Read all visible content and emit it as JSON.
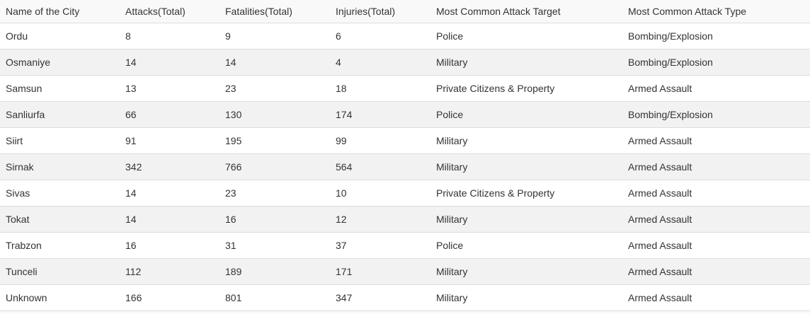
{
  "table": {
    "headers": [
      "Name of the City",
      "Attacks(Total)",
      "Fatalities(Total)",
      "Injuries(Total)",
      "Most Common Attack Target",
      "Most Common Attack Type"
    ],
    "rows": [
      [
        "Ordu",
        "8",
        "9",
        "6",
        "Police",
        "Bombing/Explosion"
      ],
      [
        "Osmaniye",
        "14",
        "14",
        "4",
        "Military",
        "Bombing/Explosion"
      ],
      [
        "Samsun",
        "13",
        "23",
        "18",
        "Private Citizens & Property",
        "Armed Assault"
      ],
      [
        "Sanliurfa",
        "66",
        "130",
        "174",
        "Police",
        "Bombing/Explosion"
      ],
      [
        "Siirt",
        "91",
        "195",
        "99",
        "Military",
        "Armed Assault"
      ],
      [
        "Sirnak",
        "342",
        "766",
        "564",
        "Military",
        "Armed Assault"
      ],
      [
        "Sivas",
        "14",
        "23",
        "10",
        "Private Citizens & Property",
        "Armed Assault"
      ],
      [
        "Tokat",
        "14",
        "16",
        "12",
        "Military",
        "Armed Assault"
      ],
      [
        "Trabzon",
        "16",
        "31",
        "37",
        "Police",
        "Armed Assault"
      ],
      [
        "Tunceli",
        "112",
        "189",
        "171",
        "Military",
        "Armed Assault"
      ],
      [
        "Unknown",
        "166",
        "801",
        "347",
        "Military",
        "Armed Assault"
      ]
    ]
  }
}
